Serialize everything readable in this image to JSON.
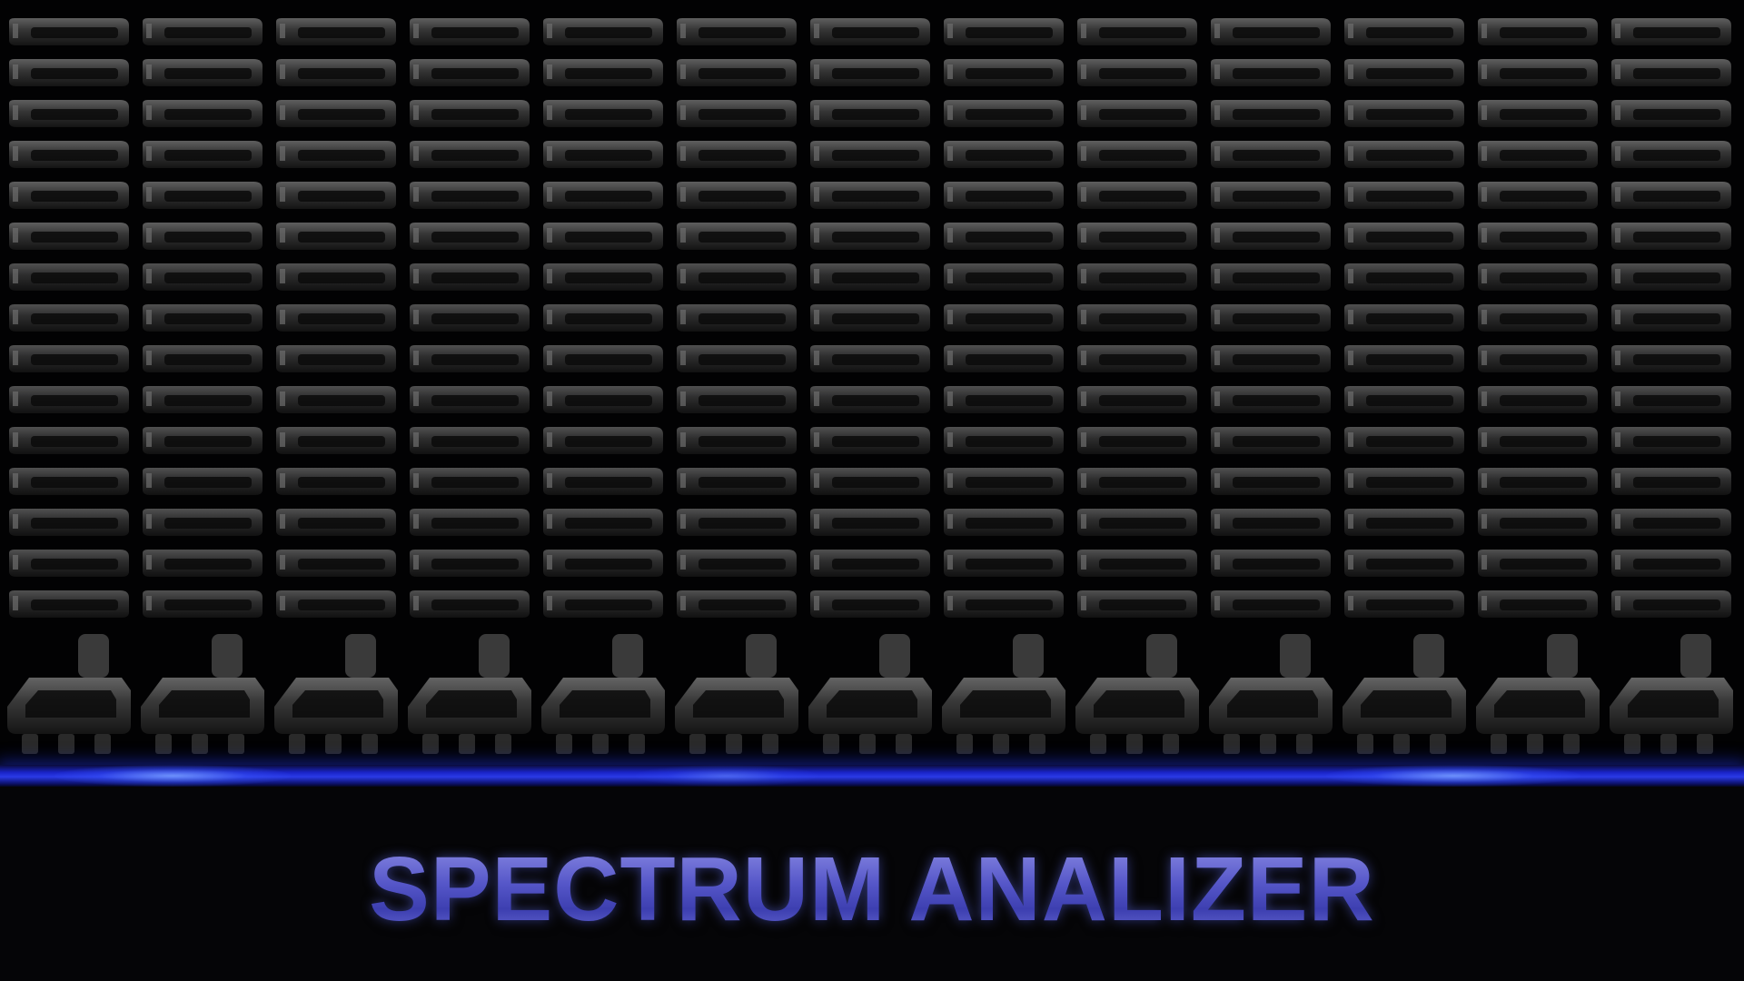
{
  "title": "SPECTRUM ANALIZER",
  "analyzer": {
    "column_count": 13,
    "bars_per_column": 15,
    "colors": {
      "background": "#000000",
      "bar_fill": "#3a3a3a",
      "bar_highlight": "#6e6e6e",
      "floor_glow": "#2a3ae6",
      "title": "#5556c8"
    }
  }
}
